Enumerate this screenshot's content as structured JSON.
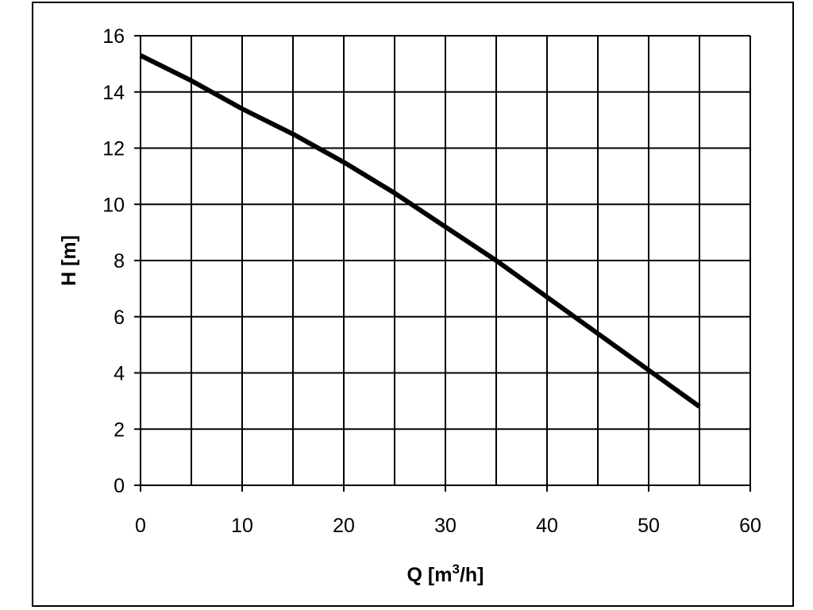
{
  "chart_data": {
    "type": "line",
    "title": "",
    "xlabel": "Q [m³/h]",
    "xlabel_parts": {
      "main": "Q [m",
      "sup": "3",
      "tail": "/h]"
    },
    "ylabel": "H [m]",
    "xlim": [
      0,
      60
    ],
    "ylim": [
      0,
      16
    ],
    "x_ticks": [
      0,
      10,
      20,
      30,
      40,
      50,
      60
    ],
    "y_ticks": [
      0,
      2,
      4,
      6,
      8,
      10,
      12,
      14,
      16
    ],
    "x_tick_labels": [
      "0",
      "10",
      "20",
      "30",
      "40",
      "50",
      "60"
    ],
    "y_tick_labels": [
      "0",
      "2",
      "4",
      "6",
      "8",
      "10",
      "12",
      "14",
      "16"
    ],
    "x_grid_step": 5,
    "y_grid_step": 2,
    "grid": true,
    "legend": "none",
    "series": [
      {
        "color": "#000000",
        "x": [
          0,
          5,
          10,
          15,
          20,
          25,
          30,
          35,
          40,
          45,
          50,
          55
        ],
        "y": [
          15.3,
          14.4,
          13.4,
          12.5,
          11.5,
          10.4,
          9.2,
          8.0,
          6.7,
          5.4,
          4.1,
          2.8
        ]
      }
    ]
  }
}
